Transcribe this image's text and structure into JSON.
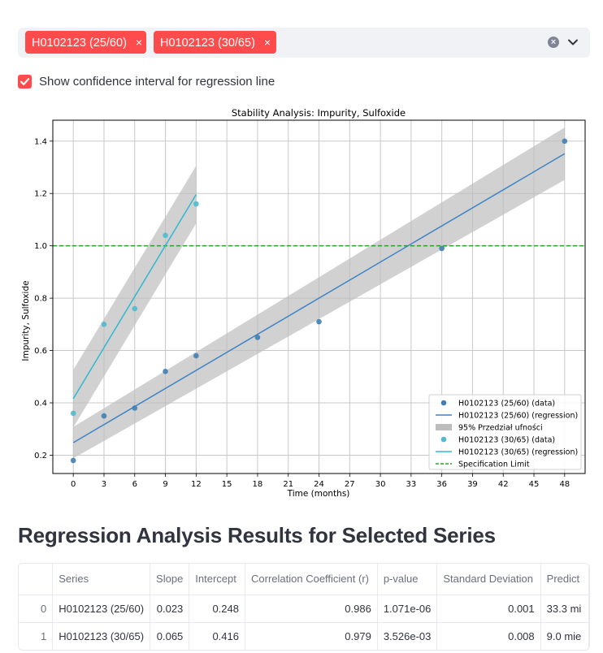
{
  "multiselect": {
    "selected": [
      {
        "label": "H0102123 (25/60)",
        "remove_glyph": "×"
      },
      {
        "label": "H0102123 (30/65)",
        "remove_glyph": "×"
      }
    ],
    "clear_icon": "clear-all-icon",
    "dropdown_icon": "chevron-down-icon",
    "chip_color": "#ff4b4b"
  },
  "checkbox": {
    "label": "Show confidence interval for regression line",
    "checked": true
  },
  "chart_data": {
    "type": "scatter",
    "title": "Stability Analysis: Impurity, Sulfoxide",
    "xlabel": "Time (months)",
    "ylabel": "Impurity, Sulfoxide",
    "xlim": [
      -2,
      50
    ],
    "ylim": [
      0.13,
      1.48
    ],
    "xticks": [
      "0",
      "3",
      "6",
      "9",
      "12",
      "15",
      "18",
      "21",
      "24",
      "27",
      "30",
      "33",
      "36",
      "39",
      "42",
      "45",
      "48"
    ],
    "yticks": [
      "0.2",
      "0.4",
      "0.6",
      "0.8",
      "1.0",
      "1.2",
      "1.4"
    ],
    "grid": true,
    "legend_position": "bottom-right",
    "spec_limit": {
      "name": "Specification Limit",
      "value": 1.0,
      "color": "#2ca02c"
    },
    "ci_label": "95% Przedział ufności",
    "series": [
      {
        "name": "H0102123 (25/60) (data)",
        "regression_name": "H0102123 (25/60) (regression)",
        "color": "#3f7fb5",
        "line_color": "#3d84c6",
        "x": [
          0,
          3,
          6,
          9,
          12,
          18,
          24,
          36,
          48
        ],
        "y": [
          0.18,
          0.35,
          0.38,
          0.52,
          0.58,
          0.65,
          0.71,
          0.99,
          1.4
        ],
        "slope": 0.023,
        "intercept": 0.248,
        "ci_halfwidth": [
          0.06,
          0.1
        ]
      },
      {
        "name": "H0102123 (30/65) (data)",
        "regression_name": "H0102123 (30/65) (regression)",
        "color": "#4fb9cf",
        "line_color": "#30b8d0",
        "x": [
          0,
          3,
          6,
          9,
          12
        ],
        "y": [
          0.36,
          0.7,
          0.76,
          1.04,
          1.16
        ],
        "slope": 0.065,
        "intercept": 0.416,
        "ci_halfwidth": [
          0.11,
          0.11
        ]
      }
    ]
  },
  "results": {
    "heading": "Regression Analysis Results for Selected Series",
    "columns": [
      "",
      "Series",
      "Slope",
      "Intercept",
      "Correlation Coefficient (r)",
      "p-value",
      "Standard Deviation",
      "Predict"
    ],
    "rows": [
      [
        "0",
        "H0102123 (25/60)",
        "0.023",
        "0.248",
        "0.986",
        "1.071e-06",
        "0.001",
        "33.3 mi"
      ],
      [
        "1",
        "H0102123 (30/65)",
        "0.065",
        "0.416",
        "0.979",
        "3.526e-03",
        "0.008",
        "9.0 mie"
      ]
    ]
  }
}
